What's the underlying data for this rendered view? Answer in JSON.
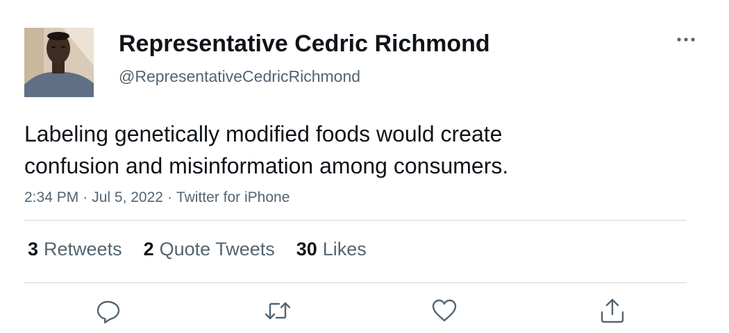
{
  "author": {
    "name": "Representative Cedric Richmond",
    "handle": "@RepresentativeCedricRichmond"
  },
  "tweet": {
    "text_lines": [
      "Labeling genetically modified foods would create",
      "confusion and misinformation among consumers."
    ],
    "time": "2:34 PM",
    "date": "Jul 5, 2022",
    "source": "Twitter for iPhone",
    "separator": "·"
  },
  "stats": {
    "retweets": {
      "count": "3",
      "label": "Retweets"
    },
    "quotes": {
      "count": "2",
      "label": "Quote Tweets"
    },
    "likes": {
      "count": "30",
      "label": "Likes"
    }
  },
  "actions": {
    "reply_icon": "reply-icon",
    "retweet_icon": "retweet-icon",
    "like_icon": "heart-icon",
    "share_icon": "share-icon"
  },
  "colors": {
    "text_primary": "#0f1419",
    "text_secondary": "#536471",
    "divider": "#cfd9de",
    "background": "#ffffff"
  }
}
